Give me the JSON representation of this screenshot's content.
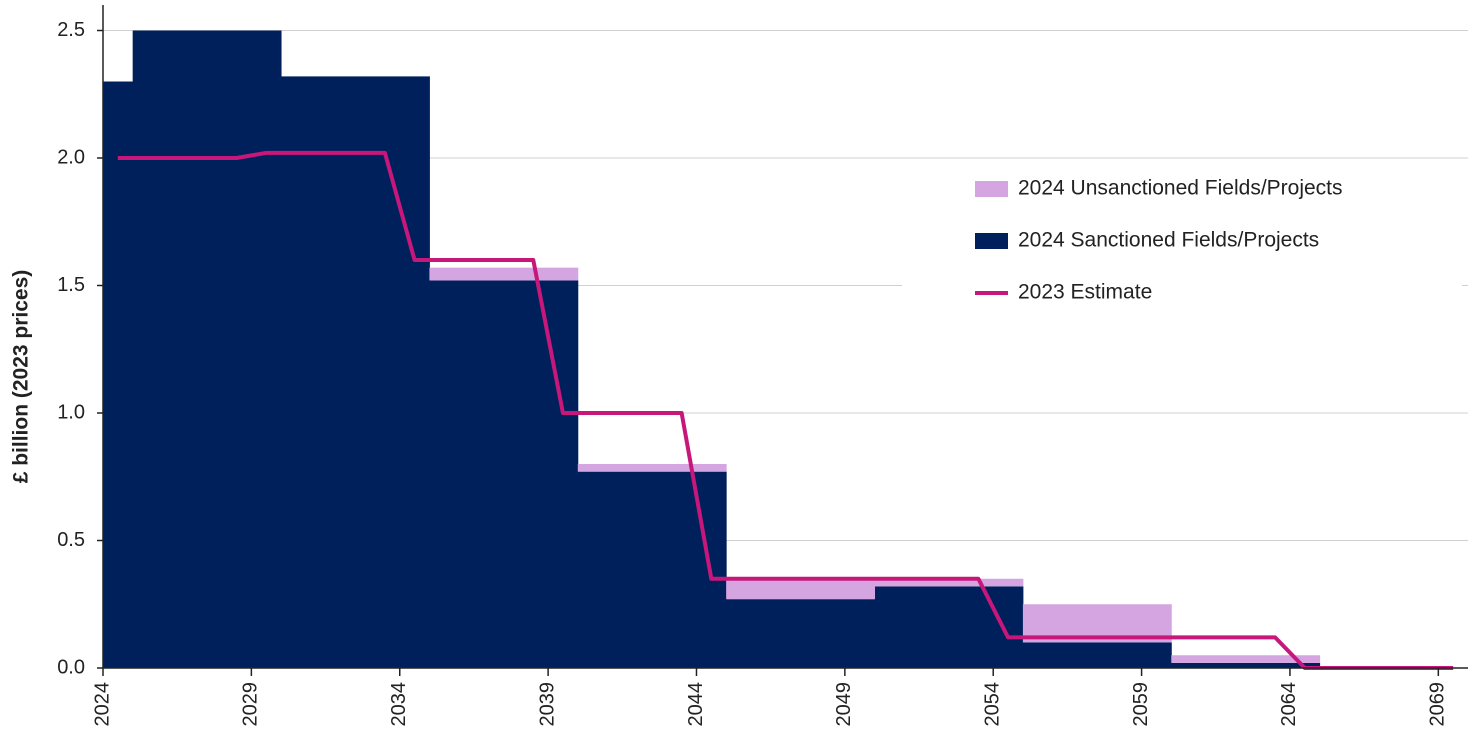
{
  "chart_data": {
    "type": "step-area",
    "y_label": "£ billion (2023 prices)",
    "x": [
      2024,
      2025,
      2030,
      2035,
      2040,
      2045,
      2050,
      2055,
      2060,
      2065
    ],
    "series": [
      {
        "name": "2024 Unsanctioned Fields/Projects",
        "color": "#d4a5e0",
        "stacked": true,
        "values": [
          0,
          0,
          0,
          0.05,
          0.03,
          0.08,
          0.03,
          0.15,
          0.03,
          0
        ]
      },
      {
        "name": "2024 Sanctioned Fields/Projects",
        "color": "#00205b",
        "stacked": true,
        "values": [
          2.3,
          2.5,
          2.32,
          1.52,
          0.77,
          0.27,
          0.32,
          0.1,
          0.02,
          0
        ]
      },
      {
        "name": "2023 Estimate",
        "color": "#c8177a",
        "type": "line",
        "x": [
          2024.5,
          2028.5,
          2029.5,
          2033.5,
          2034.5,
          2038.5,
          2039.5,
          2043.5,
          2044.5,
          2053.5,
          2054.5,
          2063.5,
          2064.5,
          2069.5
        ],
        "values": [
          2.0,
          2.0,
          2.02,
          2.02,
          1.6,
          1.6,
          1.0,
          1.0,
          0.35,
          0.35,
          0.12,
          0.12,
          0,
          0
        ]
      }
    ],
    "xlim": [
      2024,
      2070
    ],
    "xticks": [
      2024,
      2029,
      2034,
      2039,
      2044,
      2049,
      2054,
      2059,
      2064,
      2069
    ],
    "ylim": [
      0,
      2.6
    ],
    "yticks": [
      {
        "value": 0,
        "label": "0.0"
      },
      0.5,
      {
        "value": 1,
        "label": "1.0"
      },
      1.5,
      {
        "value": 2,
        "label": "2.0"
      },
      2.5
    ],
    "grid": true,
    "legend": "right"
  }
}
